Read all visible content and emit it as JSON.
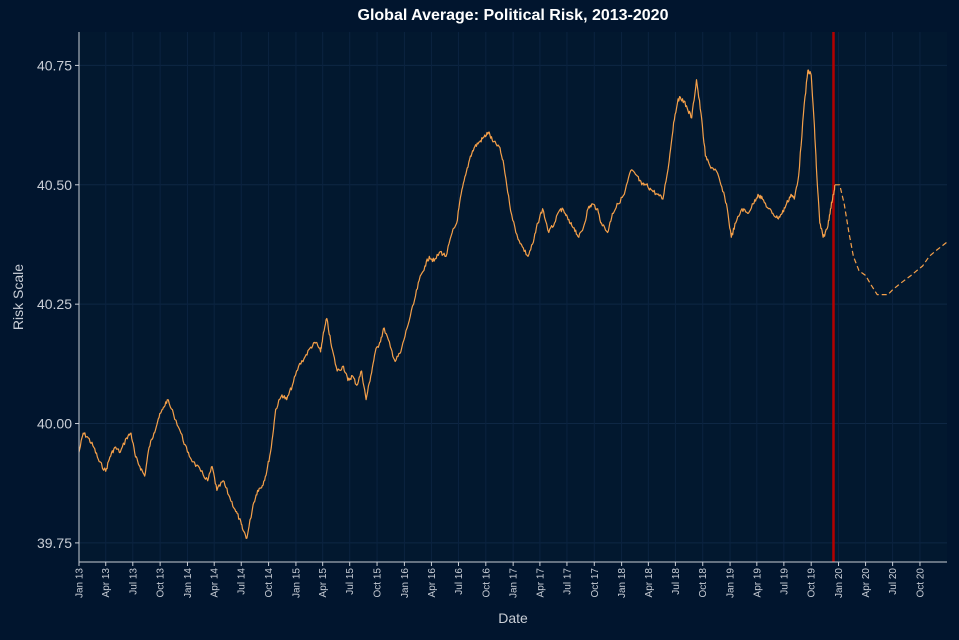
{
  "chart_data": {
    "type": "line",
    "title": "Global Average: Political Risk, 2013-2020",
    "xlabel": "Date",
    "ylabel": "Risk Scale",
    "ylim": [
      39.71,
      40.82
    ],
    "xlim": [
      "2013-01-01",
      "2020-12-31"
    ],
    "yticks": [
      39.75,
      40.0,
      40.25,
      40.5,
      40.75
    ],
    "ytick_labels": [
      "39.75",
      "40.00",
      "40.25",
      "40.50",
      "40.75"
    ],
    "xtick_dates": [
      "2013-01-01",
      "2013-04-01",
      "2013-07-01",
      "2013-10-01",
      "2014-01-01",
      "2014-04-01",
      "2014-07-01",
      "2014-10-01",
      "2015-01-01",
      "2015-04-01",
      "2015-07-01",
      "2015-10-01",
      "2016-01-01",
      "2016-04-01",
      "2016-07-01",
      "2016-10-01",
      "2017-01-01",
      "2017-04-01",
      "2017-07-01",
      "2017-10-01",
      "2018-01-01",
      "2018-04-01",
      "2018-07-01",
      "2018-10-01",
      "2019-01-01",
      "2019-04-01",
      "2019-07-01",
      "2019-10-01",
      "2020-01-01",
      "2020-04-01",
      "2020-07-01",
      "2020-10-01"
    ],
    "xtick_labels": [
      "Jan 13",
      "Apr 13",
      "Jul 13",
      "Oct 13",
      "Jan 14",
      "Apr 14",
      "Jul 14",
      "Oct 14",
      "Jan 15",
      "Apr 15",
      "Jul 15",
      "Oct 15",
      "Jan 16",
      "Apr 16",
      "Jul 16",
      "Oct 16",
      "Jan 17",
      "Apr 17",
      "Jul 17",
      "Oct 17",
      "Jan 18",
      "Apr 18",
      "Jul 18",
      "Oct 18",
      "Jan 19",
      "Apr 19",
      "Jul 19",
      "Oct 19",
      "Jan 20",
      "Apr 20",
      "Jul 20",
      "Oct 20"
    ],
    "grid": true,
    "reference_line": {
      "x": "2019-12-15",
      "color": "#b30000"
    },
    "series": [
      {
        "style": "solid",
        "color": "#f5a04a",
        "x": [
          "2013-01-01",
          "2013-01-15",
          "2013-02-01",
          "2013-02-20",
          "2013-03-10",
          "2013-04-01",
          "2013-04-15",
          "2013-05-01",
          "2013-05-20",
          "2013-06-10",
          "2013-06-25",
          "2013-07-10",
          "2013-07-25",
          "2013-08-10",
          "2013-08-25",
          "2013-09-10",
          "2013-09-25",
          "2013-10-10",
          "2013-10-25",
          "2013-11-15",
          "2013-12-10",
          "2014-01-01",
          "2014-01-20",
          "2014-02-15",
          "2014-03-10",
          "2014-03-25",
          "2014-04-10",
          "2014-05-01",
          "2014-05-20",
          "2014-06-10",
          "2014-06-25",
          "2014-07-05",
          "2014-07-20",
          "2014-08-10",
          "2014-08-25",
          "2014-09-10",
          "2014-09-25",
          "2014-10-10",
          "2014-10-25",
          "2014-11-15",
          "2014-12-01",
          "2014-12-20",
          "2015-01-10",
          "2015-02-01",
          "2015-02-20",
          "2015-03-10",
          "2015-03-25",
          "2015-04-01",
          "2015-04-15",
          "2015-05-01",
          "2015-05-20",
          "2015-06-10",
          "2015-06-25",
          "2015-07-10",
          "2015-07-25",
          "2015-08-10",
          "2015-08-25",
          "2015-09-10",
          "2015-09-25",
          "2015-10-10",
          "2015-10-25",
          "2015-11-15",
          "2015-12-01",
          "2015-12-20",
          "2016-01-10",
          "2016-02-01",
          "2016-02-20",
          "2016-03-10",
          "2016-03-25",
          "2016-04-10",
          "2016-05-01",
          "2016-05-20",
          "2016-06-10",
          "2016-06-25",
          "2016-07-10",
          "2016-07-25",
          "2016-08-10",
          "2016-08-25",
          "2016-09-10",
          "2016-09-25",
          "2016-10-10",
          "2016-10-25",
          "2016-11-15",
          "2016-12-01",
          "2016-12-20",
          "2017-01-10",
          "2017-02-01",
          "2017-02-20",
          "2017-03-10",
          "2017-03-25",
          "2017-04-10",
          "2017-05-01",
          "2017-05-20",
          "2017-06-10",
          "2017-06-25",
          "2017-07-10",
          "2017-07-25",
          "2017-08-10",
          "2017-08-25",
          "2017-09-10",
          "2017-09-25",
          "2017-10-10",
          "2017-10-25",
          "2017-11-15",
          "2017-12-01",
          "2017-12-20",
          "2018-01-10",
          "2018-02-01",
          "2018-02-20",
          "2018-03-10",
          "2018-03-25",
          "2018-04-10",
          "2018-05-01",
          "2018-05-20",
          "2018-06-10",
          "2018-06-25",
          "2018-07-10",
          "2018-07-25",
          "2018-08-10",
          "2018-08-25",
          "2018-09-10",
          "2018-09-25",
          "2018-10-10",
          "2018-10-25",
          "2018-11-15",
          "2018-12-01",
          "2018-12-20",
          "2019-01-05",
          "2019-01-20",
          "2019-02-10",
          "2019-03-01",
          "2019-03-20",
          "2019-04-05",
          "2019-04-20",
          "2019-05-10",
          "2019-05-25",
          "2019-06-10",
          "2019-06-25",
          "2019-07-10",
          "2019-07-25",
          "2019-08-05",
          "2019-08-20",
          "2019-09-05",
          "2019-09-20",
          "2019-10-01",
          "2019-10-10",
          "2019-10-20",
          "2019-10-30",
          "2019-11-10",
          "2019-11-25",
          "2019-12-05",
          "2019-12-15",
          "2019-12-20"
        ],
        "values": [
          39.94,
          39.98,
          39.97,
          39.95,
          39.92,
          39.9,
          39.93,
          39.95,
          39.94,
          39.97,
          39.98,
          39.93,
          39.91,
          39.89,
          39.95,
          39.98,
          40.01,
          40.03,
          40.05,
          40.02,
          39.98,
          39.94,
          39.92,
          39.9,
          39.88,
          39.91,
          39.86,
          39.88,
          39.85,
          39.82,
          39.8,
          39.78,
          39.76,
          39.83,
          39.86,
          39.87,
          39.9,
          39.95,
          40.03,
          40.06,
          40.05,
          40.08,
          40.12,
          40.14,
          40.16,
          40.17,
          40.15,
          40.18,
          40.22,
          40.16,
          40.11,
          40.12,
          40.09,
          40.1,
          40.08,
          40.11,
          40.05,
          40.1,
          40.15,
          40.17,
          40.2,
          40.16,
          40.13,
          40.15,
          40.2,
          40.25,
          40.3,
          40.33,
          40.35,
          40.34,
          40.36,
          40.35,
          40.4,
          40.42,
          40.48,
          40.52,
          40.56,
          40.58,
          40.59,
          40.6,
          40.61,
          40.59,
          40.58,
          40.54,
          40.46,
          40.4,
          40.37,
          40.35,
          40.38,
          40.42,
          40.45,
          40.4,
          40.42,
          40.45,
          40.44,
          40.42,
          40.41,
          40.39,
          40.41,
          40.45,
          40.46,
          40.45,
          40.42,
          40.4,
          40.44,
          40.46,
          40.48,
          40.53,
          40.52,
          40.5,
          40.5,
          40.49,
          40.48,
          40.47,
          40.55,
          40.63,
          40.68,
          40.68,
          40.66,
          40.64,
          40.72,
          40.65,
          40.56,
          40.54,
          40.53,
          40.5,
          40.46,
          40.39,
          40.42,
          40.45,
          40.44,
          40.46,
          40.48,
          40.47,
          40.45,
          40.44,
          40.43,
          40.44,
          40.46,
          40.48,
          40.47,
          40.52,
          40.65,
          40.74,
          40.73,
          40.64,
          40.52,
          40.42,
          40.39,
          40.41,
          40.45,
          40.48,
          40.5
        ]
      },
      {
        "style": "dashed",
        "color": "#f5a04a",
        "x": [
          "2019-12-20",
          "2020-01-05",
          "2020-01-20",
          "2020-02-05",
          "2020-02-20",
          "2020-03-10",
          "2020-04-01",
          "2020-04-20",
          "2020-05-10",
          "2020-06-01",
          "2020-06-15",
          "2020-07-01",
          "2020-07-20",
          "2020-08-10",
          "2020-09-01",
          "2020-09-20",
          "2020-10-10",
          "2020-11-01",
          "2020-11-20",
          "2020-12-10",
          "2020-12-31"
        ],
        "values": [
          40.5,
          40.5,
          40.46,
          40.4,
          40.35,
          40.32,
          40.31,
          40.29,
          40.27,
          40.27,
          40.27,
          40.28,
          40.29,
          40.3,
          40.31,
          40.32,
          40.33,
          40.35,
          40.36,
          40.37,
          40.38
        ]
      }
    ]
  }
}
